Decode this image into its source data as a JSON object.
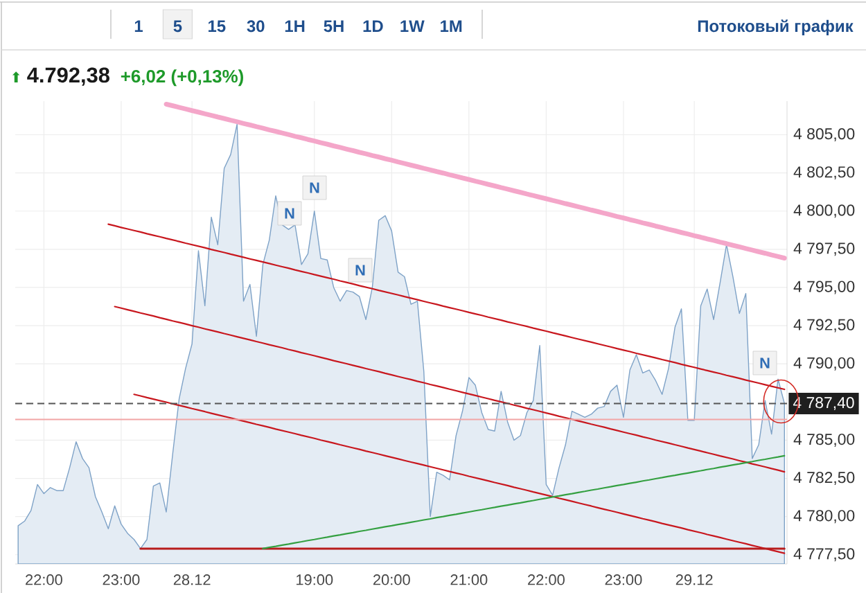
{
  "chart_data": {
    "type": "area",
    "title": "4.792,38",
    "subtitle": "+6,02 (+0,13%)",
    "annotations": [
      "1",
      "5",
      "15",
      "30",
      "1H",
      "5H",
      "1D",
      "1W",
      "1M",
      "Потоковый график",
      "N",
      "N",
      "N",
      "N",
      "⬆"
    ],
    "categories": [
      null,
      null,
      null,
      null,
      "22:00",
      null,
      null,
      null,
      null,
      null,
      null,
      null,
      null,
      null,
      null,
      null,
      "23:00",
      null,
      null,
      null,
      null,
      null,
      null,
      null,
      null,
      null,
      null,
      "28.12",
      null,
      null,
      null,
      null,
      null,
      null,
      null,
      null,
      null,
      null,
      null,
      null,
      null,
      null,
      null,
      null,
      null,
      null,
      "19:00",
      null,
      null,
      null,
      null,
      null,
      null,
      null,
      null,
      null,
      null,
      null,
      "20:00",
      null,
      null,
      null,
      null,
      null,
      null,
      null,
      null,
      null,
      null,
      null,
      "21:00",
      null,
      null,
      null,
      null,
      null,
      null,
      null,
      null,
      null,
      null,
      null,
      "22:00",
      null,
      null,
      null,
      null,
      null,
      null,
      null,
      null,
      null,
      null,
      null,
      "23:00",
      null,
      null,
      null,
      null,
      null,
      null,
      null,
      null,
      null,
      null,
      "29.12",
      null,
      null,
      null,
      null,
      null,
      null,
      null,
      null,
      null,
      null,
      null,
      null,
      null,
      null
    ],
    "series": [
      {
        "color": "#e4ecf4",
        "values": [
          4779.4,
          4779.7,
          4780.4,
          4782.1,
          4781.5,
          4781.9,
          4781.7,
          4781.7,
          4783.2,
          4784.9,
          4783.8,
          4783.2,
          4781.3,
          4780.3,
          4779.2,
          4780.7,
          4779.5,
          4778.9,
          4778.5,
          4777.9,
          4778.5,
          4782.0,
          4782.2,
          4780.3,
          4784.1,
          4787.7,
          4789.7,
          4791.3,
          4797.4,
          4793.8,
          4799.6,
          4797.8,
          4802.8,
          4803.7,
          4805.7,
          4794.1,
          4795.2,
          4791.8,
          4796.5,
          4798.1,
          4801.0,
          4799.1,
          4798.8,
          4799.1,
          4796.5,
          4797.2,
          4800.0,
          4796.9,
          4796.8,
          4795.0,
          4794.1,
          4794.8,
          4794.7,
          4794.4,
          4792.9,
          4795.0,
          4799.4,
          4799.7,
          4798.7,
          4796.0,
          4795.7,
          4793.9,
          4794.1,
          4789.5,
          4780.0,
          4782.9,
          4782.7,
          4782.4,
          4785.3,
          4786.9,
          4789.1,
          4788.6,
          4786.8,
          4785.7,
          4785.6,
          4788.2,
          4786.2,
          4785.0,
          4785.3,
          4786.8,
          4787.6,
          4791.2,
          4782.1,
          4781.4,
          4783.2,
          4784.7,
          4786.9,
          4786.7,
          4786.5,
          4786.7,
          4787.1,
          4787.2,
          4788.2,
          4788.6,
          4786.5,
          4789.6,
          4790.6,
          4789.4,
          4789.6,
          4788.9,
          4788.0,
          4789.7,
          4792.4,
          4793.6,
          4786.3,
          4786.3,
          4793.8,
          4794.9,
          4792.9,
          4795.3,
          4797.8,
          4795.7,
          4793.3,
          4794.6,
          4783.8,
          4784.7,
          4787.6,
          4785.4,
          4789.0,
          4787.4
        ]
      },
      {
        "type": "line",
        "color": "#f4a6c9",
        "values": [
          null,
          null,
          null,
          null,
          null,
          null,
          null,
          null,
          null,
          null,
          null,
          null,
          null,
          null,
          null,
          null,
          null,
          null,
          null,
          null,
          null,
          null,
          null,
          4807.0,
          4806.9,
          4806.79,
          4806.69,
          4806.58,
          4806.48,
          4806.37,
          4806.27,
          4806.16,
          4806.06,
          4805.95,
          4805.85,
          4805.74,
          4805.64,
          4805.53,
          4805.43,
          4805.32,
          4805.22,
          4805.11,
          4805.01,
          4804.9,
          4804.8,
          4804.69,
          4804.59,
          4804.48,
          4804.38,
          4804.27,
          4804.17,
          4804.06,
          4803.96,
          4803.85,
          4803.75,
          4803.64,
          4803.54,
          4803.43,
          4803.33,
          4803.22,
          4803.12,
          4803.01,
          4802.91,
          4802.8,
          4802.7,
          4802.59,
          4802.49,
          4802.38,
          4802.28,
          4802.17,
          4802.07,
          4801.96,
          4801.86,
          4801.75,
          4801.65,
          4801.54,
          4801.44,
          4801.33,
          4801.23,
          4801.12,
          4801.02,
          4800.91,
          4800.81,
          4800.7,
          4800.6,
          4800.49,
          4800.39,
          4800.28,
          4800.18,
          4800.07,
          4799.97,
          4799.86,
          4799.76,
          4799.65,
          4799.55,
          4799.44,
          4799.34,
          4799.23,
          4799.13,
          4799.02,
          4798.92,
          4798.81,
          4798.71,
          4798.6,
          4798.5,
          4798.39,
          4798.29,
          4798.18,
          4798.08,
          4797.97,
          4797.87,
          4797.76,
          4797.66,
          4797.55,
          4797.45,
          4797.34,
          4797.24,
          4797.13,
          4797.03,
          4796.92
        ]
      },
      {
        "type": "line",
        "color": "#c8171e",
        "values": [
          null,
          null,
          null,
          null,
          null,
          null,
          null,
          null,
          null,
          null,
          null,
          null,
          null,
          null,
          4799.14,
          4799.04,
          4798.93,
          4798.83,
          4798.73,
          4798.63,
          4798.52,
          4798.42,
          4798.32,
          4798.21,
          4798.11,
          4798.01,
          4797.9,
          4797.8,
          4797.7,
          4797.6,
          4797.49,
          4797.39,
          4797.29,
          4797.18,
          4797.08,
          4796.98,
          4796.87,
          4796.77,
          4796.67,
          4796.57,
          4796.46,
          4796.36,
          4796.26,
          4796.15,
          4796.05,
          4795.95,
          4795.84,
          4795.74,
          4795.64,
          4795.54,
          4795.43,
          4795.33,
          4795.23,
          4795.12,
          4795.02,
          4794.92,
          4794.81,
          4794.71,
          4794.61,
          4794.51,
          4794.4,
          4794.3,
          4794.2,
          4794.09,
          4793.99,
          4793.89,
          4793.78,
          4793.68,
          4793.58,
          4793.48,
          4793.37,
          4793.27,
          4793.17,
          4793.06,
          4792.96,
          4792.86,
          4792.75,
          4792.65,
          4792.55,
          4792.45,
          4792.34,
          4792.24,
          4792.14,
          4792.03,
          4791.93,
          4791.83,
          4791.72,
          4791.62,
          4791.52,
          4791.42,
          4791.31,
          4791.21,
          4791.11,
          4791.0,
          4790.9,
          4790.8,
          4790.69,
          4790.59,
          4790.49,
          4790.39,
          4790.28,
          4790.18,
          4790.08,
          4789.97,
          4789.87,
          4789.77,
          4789.66,
          4789.56,
          4789.46,
          4789.36,
          4789.25,
          4789.15,
          4789.05,
          4788.94,
          4788.84,
          4788.74,
          4788.63,
          4788.53,
          4788.43,
          4788.33
        ]
      },
      {
        "type": "line",
        "color": "#c8171e",
        "values": [
          null,
          null,
          null,
          null,
          null,
          null,
          null,
          null,
          null,
          null,
          null,
          null,
          null,
          null,
          null,
          4793.75,
          4793.65,
          4793.54,
          4793.44,
          4793.33,
          4793.23,
          4793.13,
          4793.02,
          4792.92,
          4792.81,
          4792.71,
          4792.61,
          4792.5,
          4792.4,
          4792.29,
          4792.19,
          4792.09,
          4791.98,
          4791.88,
          4791.77,
          4791.67,
          4791.57,
          4791.46,
          4791.36,
          4791.25,
          4791.15,
          4791.05,
          4790.94,
          4790.84,
          4790.73,
          4790.63,
          4790.53,
          4790.42,
          4790.32,
          4790.21,
          4790.11,
          4790.01,
          4789.9,
          4789.8,
          4789.69,
          4789.59,
          4789.49,
          4789.38,
          4789.28,
          4789.17,
          4789.07,
          4788.97,
          4788.86,
          4788.76,
          4788.65,
          4788.55,
          4788.45,
          4788.34,
          4788.24,
          4788.13,
          4788.03,
          4787.93,
          4787.82,
          4787.72,
          4787.61,
          4787.51,
          4787.41,
          4787.3,
          4787.2,
          4787.09,
          4786.99,
          4786.89,
          4786.78,
          4786.68,
          4786.57,
          4786.47,
          4786.37,
          4786.26,
          4786.16,
          4786.05,
          4785.95,
          4785.85,
          4785.74,
          4785.64,
          4785.53,
          4785.43,
          4785.33,
          4785.22,
          4785.12,
          4785.01,
          4784.91,
          4784.81,
          4784.7,
          4784.6,
          4784.49,
          4784.39,
          4784.29,
          4784.18,
          4784.08,
          4783.97,
          4783.87,
          4783.77,
          4783.66,
          4783.56,
          4783.45,
          4783.35,
          4783.25,
          4783.14,
          4783.04,
          4782.93
        ]
      },
      {
        "type": "line",
        "color": "#c8171e",
        "values": [
          null,
          null,
          null,
          null,
          null,
          null,
          null,
          null,
          null,
          null,
          null,
          null,
          null,
          null,
          null,
          null,
          null,
          null,
          4788.0,
          4787.9,
          4787.79,
          4787.69,
          4787.59,
          4787.49,
          4787.38,
          4787.28,
          4787.18,
          4787.07,
          4786.97,
          4786.87,
          4786.76,
          4786.66,
          4786.56,
          4786.46,
          4786.35,
          4786.25,
          4786.15,
          4786.04,
          4785.94,
          4785.84,
          4785.73,
          4785.63,
          4785.53,
          4785.43,
          4785.32,
          4785.22,
          4785.12,
          4785.01,
          4784.91,
          4784.81,
          4784.7,
          4784.6,
          4784.5,
          4784.4,
          4784.29,
          4784.19,
          4784.09,
          4783.98,
          4783.88,
          4783.78,
          4783.67,
          4783.57,
          4783.47,
          4783.37,
          4783.26,
          4783.16,
          4783.06,
          4782.95,
          4782.85,
          4782.75,
          4782.64,
          4782.54,
          4782.44,
          4782.34,
          4782.23,
          4782.13,
          4782.03,
          4781.92,
          4781.82,
          4781.72,
          4781.61,
          4781.51,
          4781.41,
          4781.31,
          4781.2,
          4781.1,
          4781.0,
          4780.89,
          4780.79,
          4780.69,
          4780.58,
          4780.48,
          4780.38,
          4780.28,
          4780.17,
          4780.07,
          4779.97,
          4779.86,
          4779.76,
          4779.66,
          4779.55,
          4779.45,
          4779.35,
          4779.25,
          4779.14,
          4779.04,
          4778.94,
          4778.83,
          4778.73,
          4778.63,
          4778.52,
          4778.42,
          4778.32,
          4778.22,
          4778.11,
          4778.01,
          4777.91,
          4777.8,
          4777.7,
          4777.6
        ]
      },
      {
        "type": "line",
        "color": "#b71c1c",
        "values": [
          null,
          null,
          null,
          null,
          null,
          null,
          null,
          null,
          null,
          null,
          null,
          null,
          null,
          null,
          null,
          null,
          null,
          null,
          null,
          4777.9,
          4777.9,
          4777.9,
          4777.9,
          4777.9,
          4777.9,
          4777.9,
          4777.9,
          4777.9,
          4777.9,
          4777.9,
          4777.9,
          4777.9,
          4777.9,
          4777.9,
          4777.9,
          4777.9,
          4777.9,
          4777.9,
          4777.9,
          4777.9,
          4777.9,
          4777.9,
          4777.9,
          4777.9,
          4777.9,
          4777.9,
          4777.9,
          4777.9,
          4777.9,
          4777.9,
          4777.9,
          4777.9,
          4777.9,
          4777.9,
          4777.9,
          4777.9,
          4777.9,
          4777.9,
          4777.9,
          4777.9,
          4777.9,
          4777.9,
          4777.9,
          4777.9,
          4777.9,
          4777.9,
          4777.9,
          4777.9,
          4777.9,
          4777.9,
          4777.9,
          4777.9,
          4777.9,
          4777.9,
          4777.9,
          4777.9,
          4777.9,
          4777.9,
          4777.9,
          4777.9,
          4777.9,
          4777.9,
          4777.9,
          4777.9,
          4777.9,
          4777.9,
          4777.9,
          4777.9,
          4777.9,
          4777.9,
          4777.9,
          4777.9,
          4777.9,
          4777.9,
          4777.9,
          4777.9,
          4777.9,
          4777.9,
          4777.9,
          4777.9,
          4777.9,
          4777.9,
          4777.9,
          4777.9,
          4777.9,
          4777.9,
          4777.9,
          4777.9,
          4777.9,
          4777.9,
          4777.9,
          4777.9,
          4777.9,
          4777.9,
          4777.9,
          4777.9,
          4777.9,
          4777.9,
          4777.9,
          4777.9
        ]
      },
      {
        "type": "line",
        "color": "#34a041",
        "values": [
          null,
          null,
          null,
          null,
          null,
          null,
          null,
          null,
          null,
          null,
          null,
          null,
          null,
          null,
          null,
          null,
          null,
          null,
          null,
          null,
          null,
          null,
          null,
          null,
          null,
          null,
          null,
          null,
          null,
          null,
          null,
          null,
          null,
          null,
          null,
          null,
          null,
          null,
          4777.9,
          4777.98,
          4778.05,
          4778.13,
          4778.2,
          4778.28,
          4778.35,
          4778.43,
          4778.5,
          4778.58,
          4778.65,
          4778.73,
          4778.8,
          4778.88,
          4778.95,
          4779.03,
          4779.1,
          4779.18,
          4779.25,
          4779.33,
          4779.4,
          4779.48,
          4779.55,
          4779.63,
          4779.7,
          4779.78,
          4779.85,
          4779.93,
          4780.0,
          4780.08,
          4780.15,
          4780.23,
          4780.3,
          4780.38,
          4780.45,
          4780.53,
          4780.6,
          4780.68,
          4780.75,
          4780.83,
          4780.9,
          4780.98,
          4781.05,
          4781.13,
          4781.2,
          4781.28,
          4781.35,
          4781.43,
          4781.5,
          4781.58,
          4781.65,
          4781.73,
          4781.8,
          4781.88,
          4781.95,
          4782.03,
          4782.1,
          4782.18,
          4782.25,
          4782.33,
          4782.4,
          4782.48,
          4782.55,
          4782.63,
          4782.7,
          4782.78,
          4782.85,
          4782.93,
          4783.0,
          4783.08,
          4783.15,
          4783.23,
          4783.3,
          4783.38,
          4783.45,
          4783.53,
          4783.6,
          4783.68,
          4783.75,
          4783.83,
          4783.9,
          4783.98
        ]
      }
    ],
    "ylim": [
      4776.9,
      4807.2
    ],
    "yticks": [
      {
        "value": 4777.5,
        "label": "4 777,50"
      },
      {
        "value": 4780,
        "label": "4 780,00"
      },
      {
        "value": 4782.5,
        "label": "4 782,50"
      },
      {
        "value": 4785,
        "label": "4 785,00"
      },
      {
        "value": 4790,
        "label": "4 790,00"
      },
      {
        "value": 4792.5,
        "label": "4 792,50"
      },
      {
        "value": 4795,
        "label": "4 795,00"
      },
      {
        "value": 4797.5,
        "label": "4 797,50"
      },
      {
        "value": 4800,
        "label": "4 800,00"
      },
      {
        "value": 4802.5,
        "label": "4 802,50"
      },
      {
        "value": 4805,
        "label": "4 805,00"
      }
    ],
    "ref_lines": [
      {
        "axis": "y",
        "value": 4786.36,
        "color": "#f2a5a5"
      },
      {
        "axis": "y",
        "value": 4787.4,
        "label": "4 787,40",
        "color": "#555555",
        "line_style": "dashed"
      }
    ],
    "grid": true
  }
}
